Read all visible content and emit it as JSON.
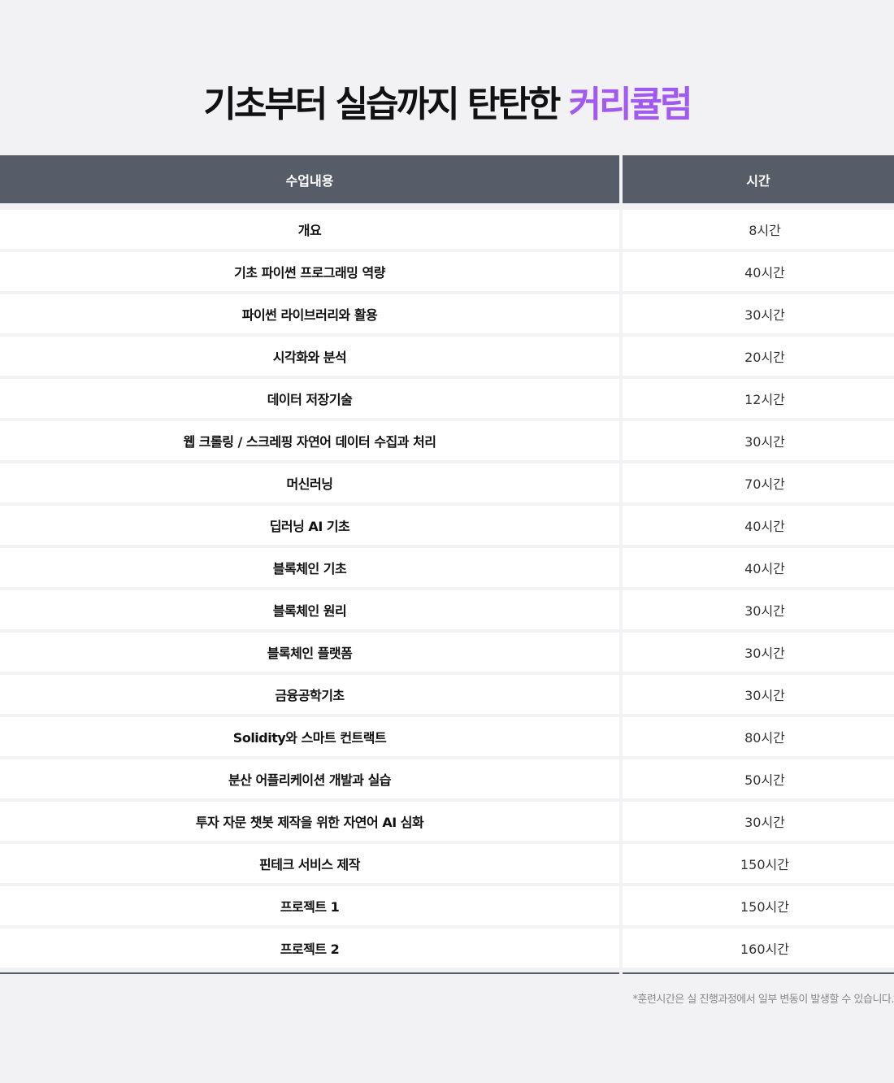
{
  "title": {
    "main": "기초부터 실습까지 탄탄한",
    "accent": "커리큘럼",
    "accent_color": "#a259f0"
  },
  "table": {
    "headers": [
      "수업내용",
      "시간"
    ],
    "rows": [
      {
        "name": "개요",
        "hours": "8시간"
      },
      {
        "name": "기초 파이썬 프로그래밍 역량",
        "hours": "40시간"
      },
      {
        "name": "파이썬 라이브러리와 활용",
        "hours": "30시간"
      },
      {
        "name": "시각화와 분석",
        "hours": "20시간"
      },
      {
        "name": "데이터 저장기술",
        "hours": "12시간"
      },
      {
        "name": "웹 크롤링 / 스크레핑 자연어 데이터 수집과 처리",
        "hours": "30시간"
      },
      {
        "name": "머신러닝",
        "hours": "70시간"
      },
      {
        "name": "딥러닝 AI 기초",
        "hours": "40시간"
      },
      {
        "name": "블록체인 기초",
        "hours": "40시간"
      },
      {
        "name": "블록체인 원리",
        "hours": "30시간"
      },
      {
        "name": "블록체인 플랫폼",
        "hours": "30시간"
      },
      {
        "name": "금융공학기초",
        "hours": "30시간"
      },
      {
        "name": "Solidity와 스마트 컨트랙트",
        "hours": "80시간"
      },
      {
        "name": "분산 어플리케이션 개발과 실습",
        "hours": "50시간"
      },
      {
        "name": "투자 자문 챗봇 제작을 위한 자연어 AI 심화",
        "hours": "30시간"
      },
      {
        "name": "핀테크 서비스 제작",
        "hours": "150시간"
      },
      {
        "name": "프로젝트 1",
        "hours": "150시간"
      },
      {
        "name": "프로젝트 2",
        "hours": "160시간"
      }
    ]
  },
  "note": "*훈련시간은 실 진행과정에서 일부 변동이 발생할 수 있습니다."
}
